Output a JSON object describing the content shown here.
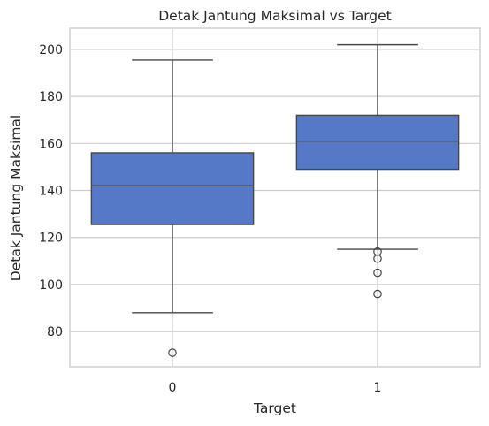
{
  "chart_data": {
    "type": "box",
    "title": "Detak Jantung Maksimal vs Target",
    "xlabel": "Target",
    "ylabel": "Detak Jantung Maksimal",
    "categories": [
      "0",
      "1"
    ],
    "ylim": [
      65,
      209
    ],
    "yticks": [
      80,
      100,
      120,
      140,
      160,
      180,
      200
    ],
    "grid": true,
    "color": "#5579c6",
    "boxes": [
      {
        "category": "0",
        "whisker_low": 88,
        "q1": 125.5,
        "median": 142,
        "q3": 156,
        "whisker_high": 195.5,
        "outliers": [
          71
        ]
      },
      {
        "category": "1",
        "whisker_low": 115,
        "q1": 149,
        "median": 161,
        "q3": 172,
        "whisker_high": 202,
        "outliers": [
          114,
          111,
          105,
          96
        ]
      }
    ]
  }
}
